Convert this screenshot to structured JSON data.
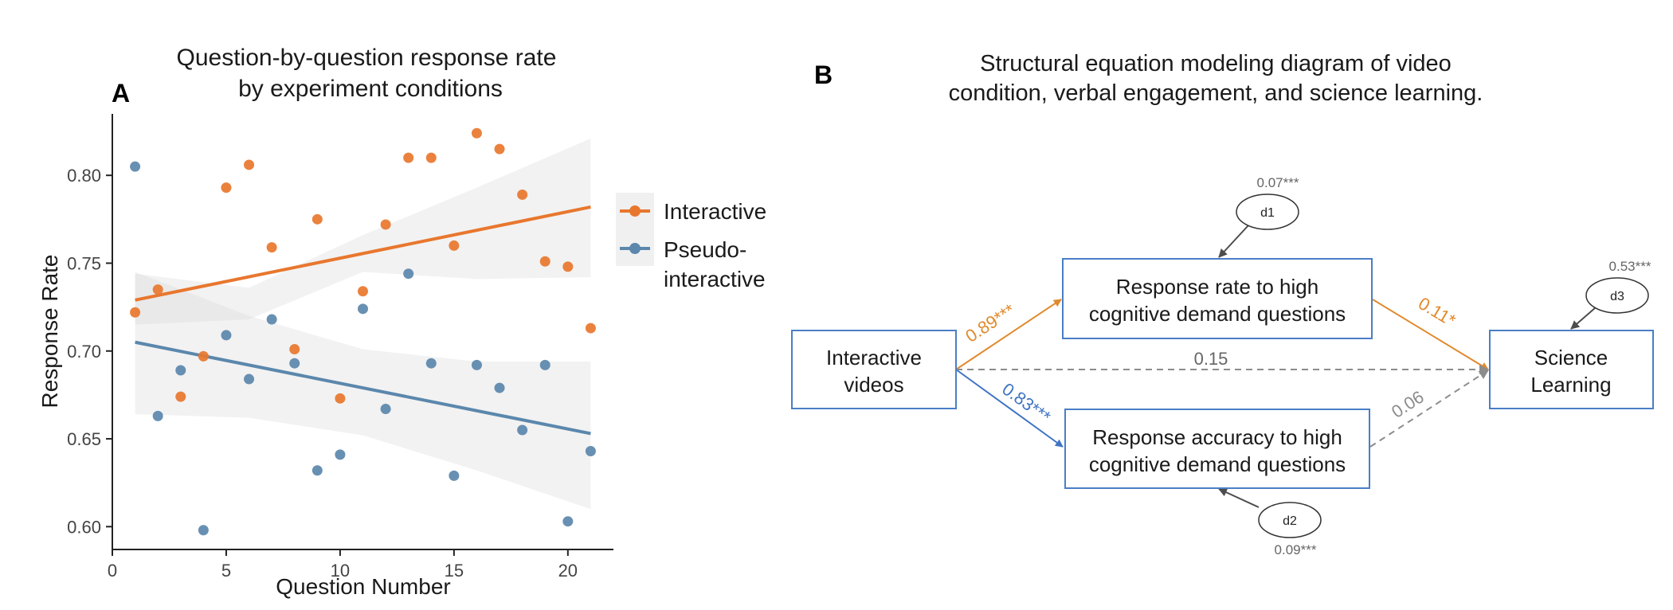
{
  "panel_a": {
    "label": "A",
    "title_line1": "Question-by-question response rate",
    "title_line2": "by experiment conditions"
  },
  "panel_b": {
    "label": "B",
    "title_line1": "Structural equation modeling diagram of video",
    "title_line2": "condition, verbal engagement, and science learning.",
    "nodes": {
      "interactive_line1": "Interactive",
      "interactive_line2": "videos",
      "rate_line1": "Response rate to high",
      "rate_line2": "cognitive demand questions",
      "accuracy_line1": "Response accuracy to high",
      "accuracy_line2": "cognitive demand questions",
      "science_line1": "Science",
      "science_line2": "Learning"
    },
    "disturbances": {
      "d1": "d1",
      "d1_value": "0.07***",
      "d2": "d2",
      "d2_value": "0.09***",
      "d3": "d3",
      "d3_value": "0.53***"
    },
    "paths": {
      "to_rate": "0.89***",
      "to_accuracy": "0.83***",
      "rate_to_science": "0.11*",
      "accuracy_to_science": "0.06",
      "direct": "0.15"
    },
    "colors": {
      "box": "#4a7ec6",
      "orange": "#e08a2c",
      "blue": "#3f74c2",
      "gray": "#8c8c8c",
      "dark": "#4d4d4d"
    }
  },
  "chart_data": {
    "type": "scatter",
    "xlabel": "Question Number",
    "ylabel": "Response Rate",
    "xlim": [
      0,
      22
    ],
    "ylim": [
      0.587,
      0.835
    ],
    "xticks": [
      0,
      5,
      10,
      15,
      20
    ],
    "yticks": [
      0.6,
      0.65,
      0.7,
      0.75,
      0.8
    ],
    "xtick_labels": [
      "0",
      "5",
      "10",
      "15",
      "20"
    ],
    "ytick_labels": [
      "0.60",
      "0.65",
      "0.70",
      "0.75",
      "0.80"
    ],
    "grid": false,
    "legend_position": "right",
    "series": [
      {
        "name": "Interactive",
        "legend_line1": "Interactive",
        "color": "#e8772e",
        "x": [
          1,
          2,
          3,
          4,
          5,
          6,
          7,
          8,
          9,
          10,
          11,
          12,
          13,
          14,
          15,
          16,
          17,
          18,
          19,
          20,
          21
        ],
        "y": [
          0.722,
          0.735,
          0.674,
          0.697,
          0.793,
          0.806,
          0.759,
          0.701,
          0.775,
          0.673,
          0.734,
          0.772,
          0.81,
          0.81,
          0.76,
          0.824,
          0.815,
          0.789,
          0.751,
          0.748,
          0.713
        ],
        "trend": {
          "x0": 1,
          "y0": 0.729,
          "x1": 21,
          "y1": 0.782
        },
        "band": {
          "upper": [
            0.744,
            0.736,
            0.766,
            0.793,
            0.821
          ],
          "lower": [
            0.715,
            0.718,
            0.745,
            0.741,
            0.742
          ],
          "x": [
            1,
            6,
            11,
            16,
            21
          ]
        }
      },
      {
        "name": "Pseudo-interactive",
        "legend_line1": "Pseudo-",
        "legend_line2": "interactive",
        "color": "#5b87ac",
        "x": [
          1,
          2,
          3,
          4,
          5,
          6,
          7,
          8,
          9,
          10,
          11,
          12,
          13,
          14,
          15,
          16,
          17,
          18,
          19,
          20,
          21
        ],
        "y": [
          0.805,
          0.663,
          0.689,
          0.598,
          0.709,
          0.684,
          0.718,
          0.693,
          0.632,
          0.641,
          0.724,
          0.667,
          0.744,
          0.693,
          0.629,
          0.692,
          0.679,
          0.655,
          0.692,
          0.603,
          0.643
        ],
        "trend": {
          "x0": 1,
          "y0": 0.705,
          "x1": 21,
          "y1": 0.653
        },
        "band": {
          "upper": [
            0.745,
            0.72,
            0.701,
            0.694,
            0.694
          ],
          "lower": [
            0.664,
            0.662,
            0.652,
            0.632,
            0.61
          ],
          "x": [
            1,
            6,
            11,
            16,
            21
          ]
        }
      }
    ]
  }
}
